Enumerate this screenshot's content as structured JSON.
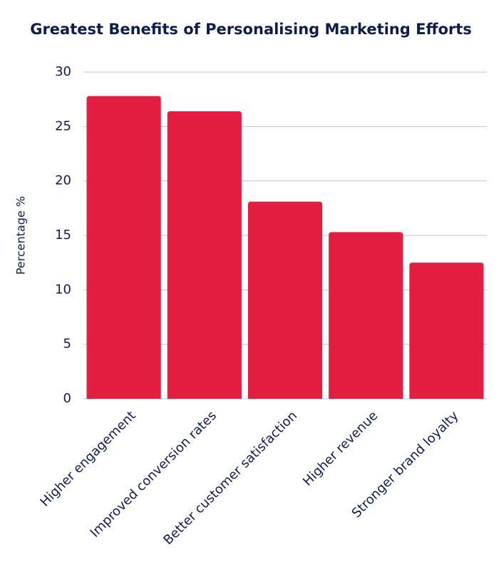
{
  "chart_data": {
    "type": "bar",
    "title": "Greatest Benefits of Personalising Marketing Efforts",
    "y_label": "Percentage %",
    "categories": [
      "Higher engagement",
      "Improved conversion rates",
      "Better customer satisfaction",
      "Higher revenue",
      "Stronger brand loyalty"
    ],
    "values": [
      27.8,
      26.4,
      18.1,
      15.3,
      12.5
    ],
    "color": "#e31e42",
    "ylim": [
      0,
      30
    ],
    "yticks": [
      0,
      5,
      10,
      15,
      20,
      25,
      30
    ],
    "grid": true
  }
}
